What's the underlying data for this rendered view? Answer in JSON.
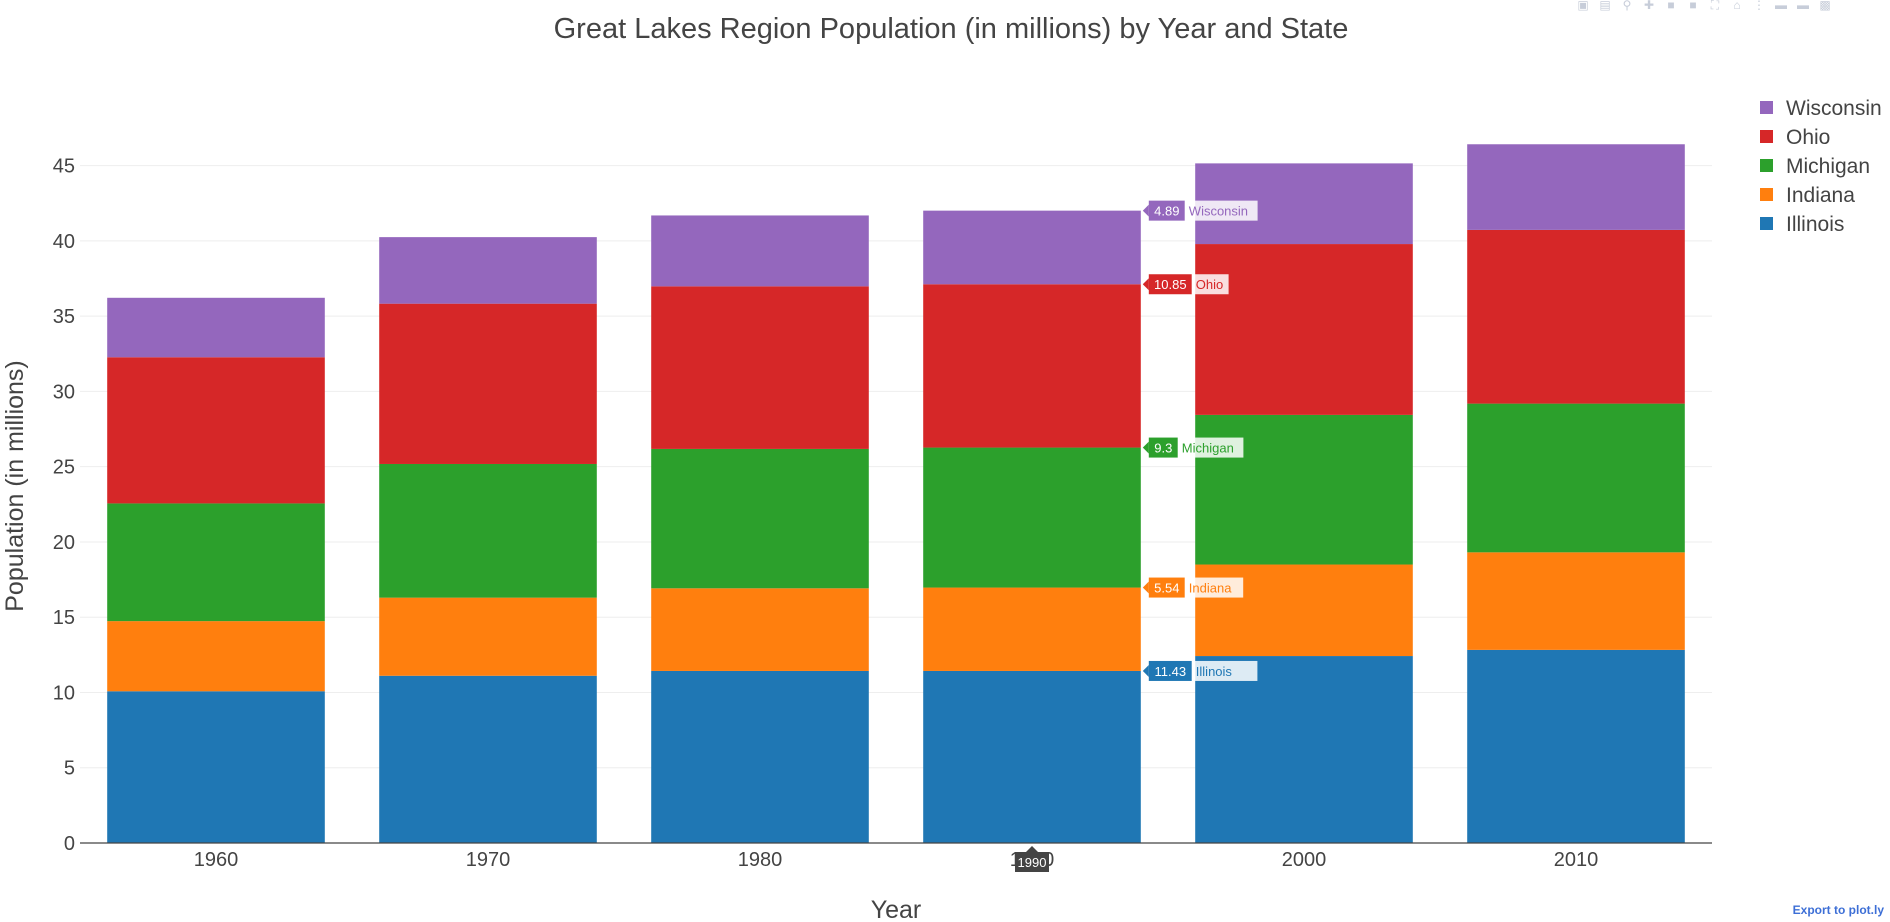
{
  "chart_data": {
    "type": "bar",
    "stacked": true,
    "title": "Great Lakes Region Population (in millions) by Year and State",
    "xlabel": "Year",
    "ylabel": "Population (in millions)",
    "categories": [
      "1960",
      "1970",
      "1980",
      "1990",
      "2000",
      "2010"
    ],
    "ylim": [
      0,
      47.5
    ],
    "yticks": [
      0,
      5,
      10,
      15,
      20,
      25,
      30,
      35,
      40,
      45
    ],
    "grid": true,
    "legend_position": "top-right",
    "series": [
      {
        "name": "Illinois",
        "color": "#1f77b4",
        "values": [
          10.08,
          11.11,
          11.43,
          11.43,
          12.42,
          12.83
        ]
      },
      {
        "name": "Indiana",
        "color": "#ff7f0e",
        "values": [
          4.66,
          5.19,
          5.49,
          5.54,
          6.08,
          6.48
        ]
      },
      {
        "name": "Michigan",
        "color": "#2ca02c",
        "values": [
          7.82,
          8.88,
          9.26,
          9.3,
          9.94,
          9.88
        ]
      },
      {
        "name": "Ohio",
        "color": "#d62728",
        "values": [
          9.71,
          10.65,
          10.8,
          10.85,
          11.35,
          11.54
        ]
      },
      {
        "name": "Wisconsin",
        "color": "#9467bd",
        "values": [
          3.95,
          4.42,
          4.71,
          4.89,
          5.36,
          5.69
        ]
      }
    ],
    "hover": {
      "category": "1990",
      "labels": [
        {
          "series": "Wisconsin",
          "value": "4.89"
        },
        {
          "series": "Ohio",
          "value": "10.85"
        },
        {
          "series": "Michigan",
          "value": "9.3"
        },
        {
          "series": "Indiana",
          "value": "5.54"
        },
        {
          "series": "Illinois",
          "value": "11.43"
        }
      ]
    }
  },
  "links": {
    "export_label": "Export to plot.ly"
  },
  "modebar_icons": [
    "camera-icon",
    "save-icon",
    "zoom-icon",
    "pan-icon",
    "zoom-in-icon",
    "zoom-out-icon",
    "autoscale-icon",
    "reset-axes-icon",
    "spike-lines-icon",
    "hover-closest-icon",
    "hover-compare-icon",
    "plotly-logo-icon"
  ]
}
